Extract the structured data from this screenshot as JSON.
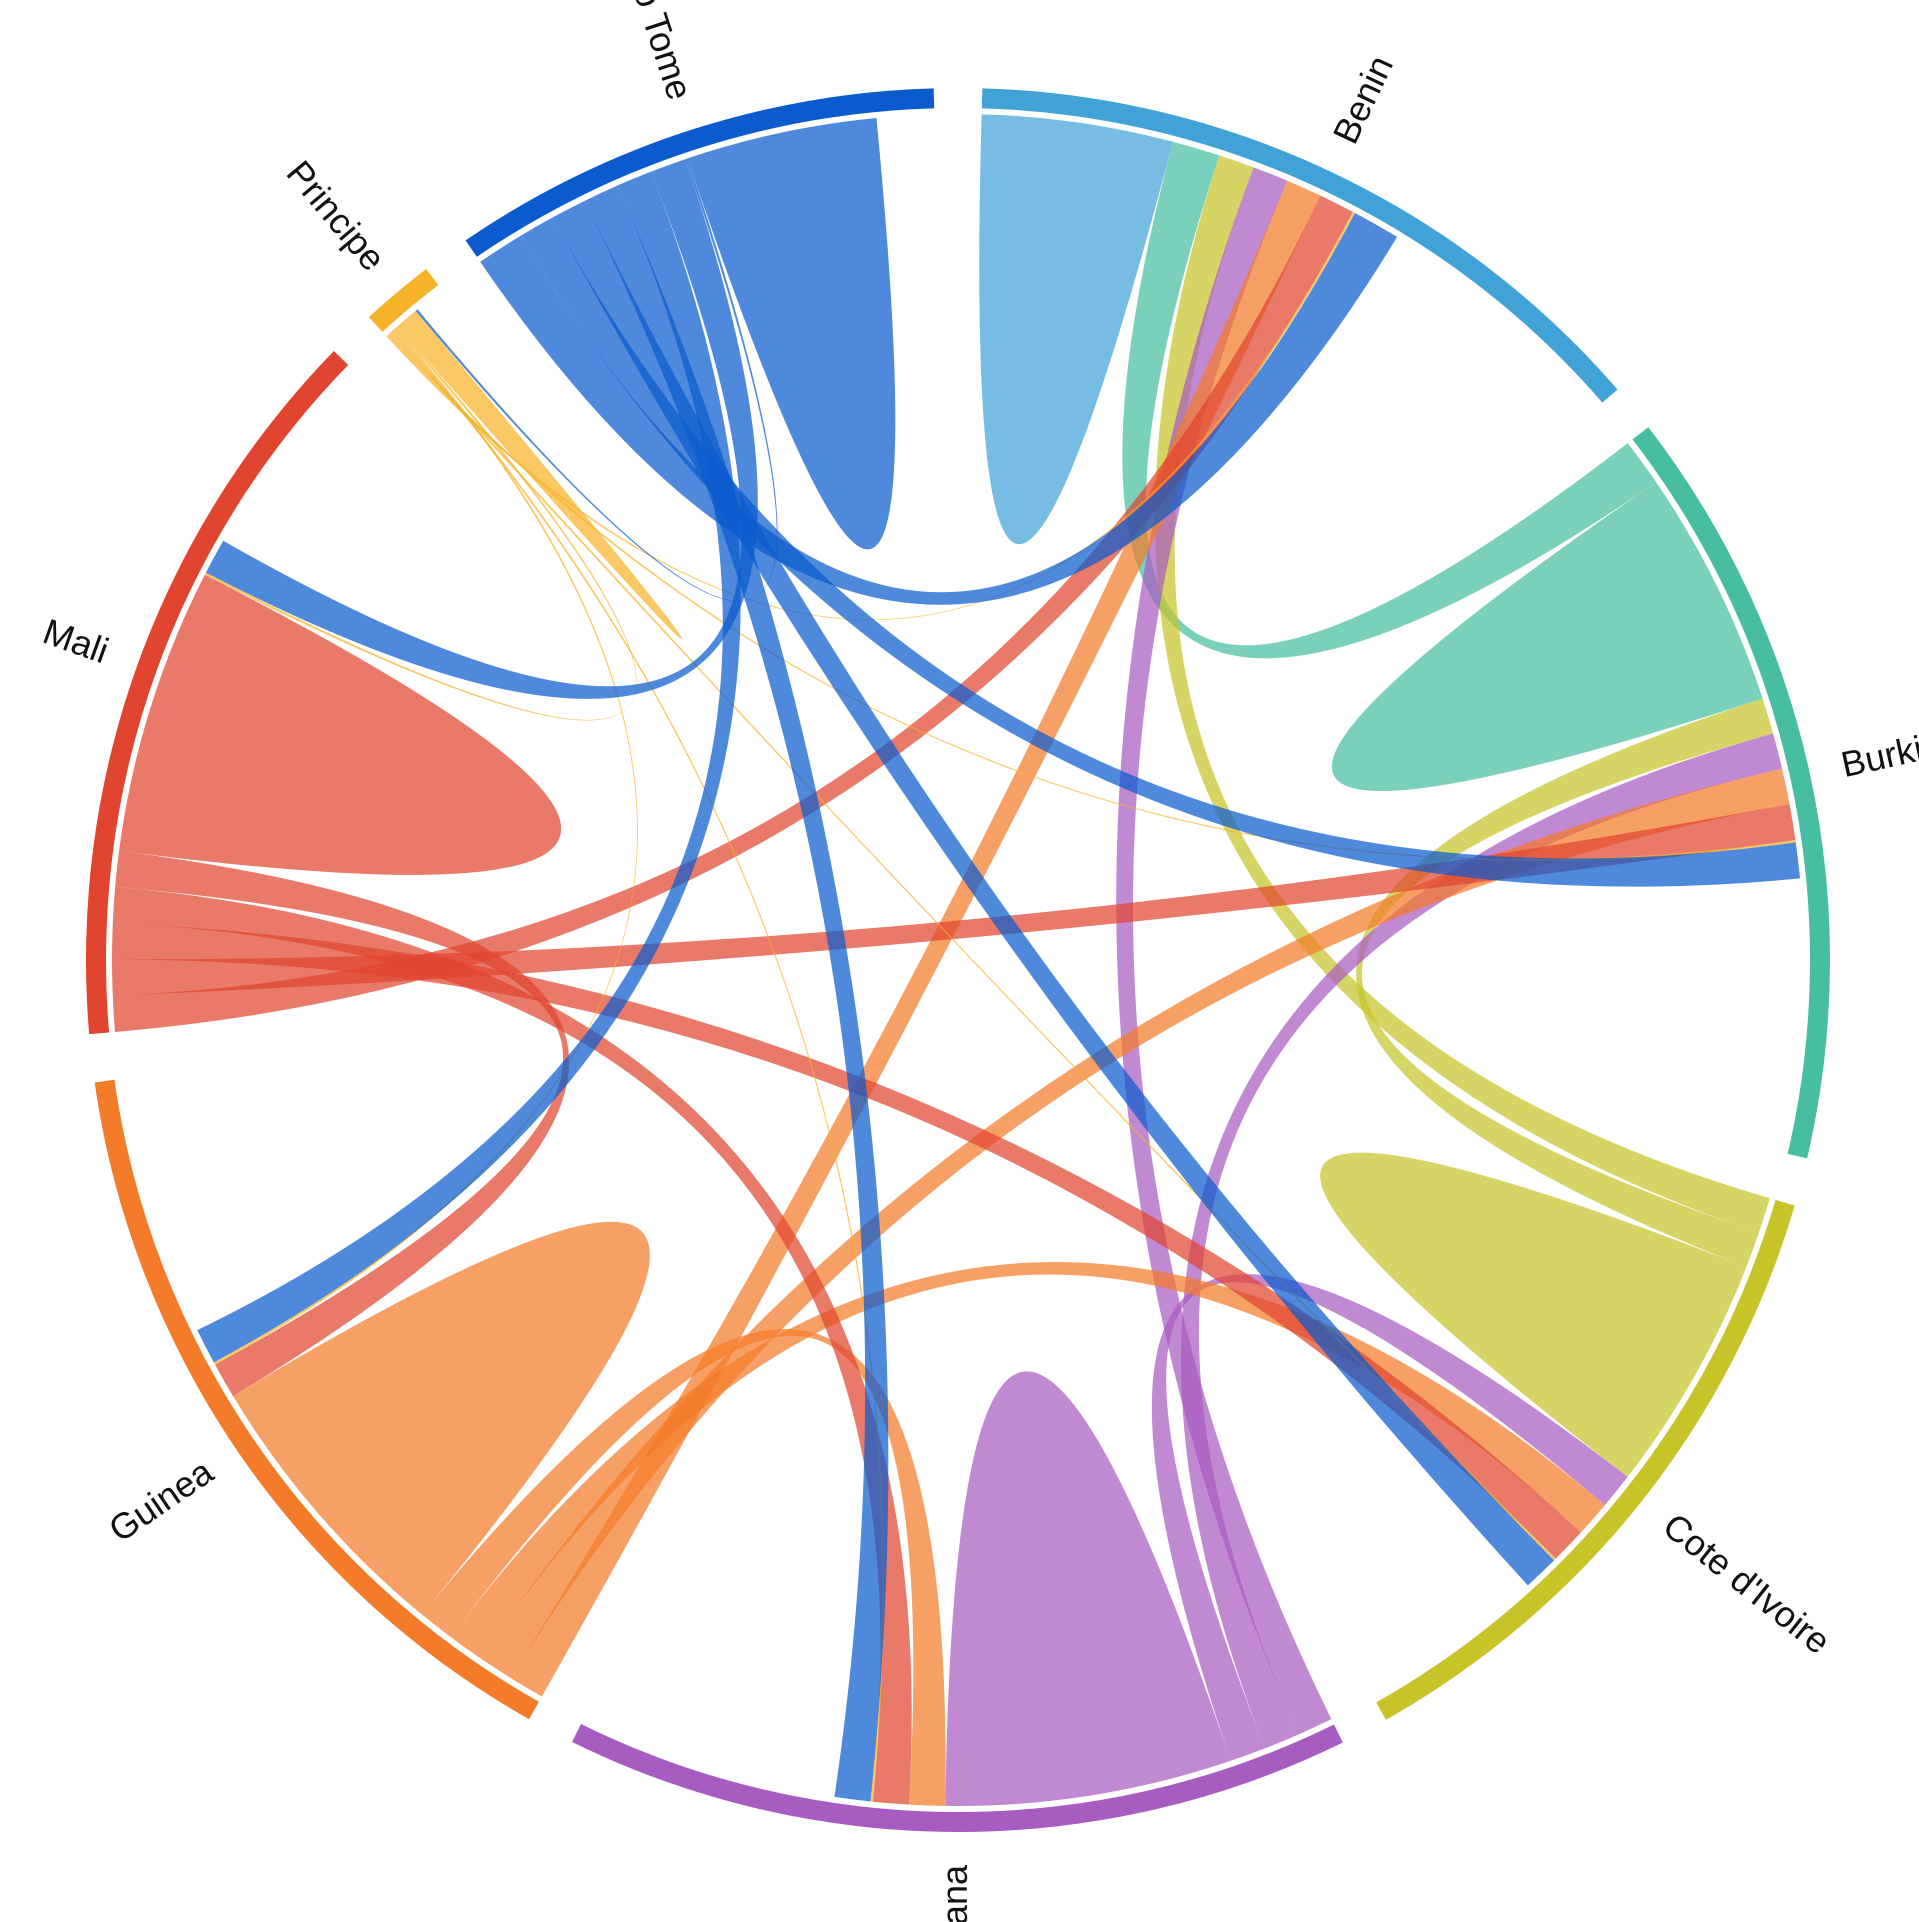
{
  "chart_data": {
    "type": "chord",
    "title": "",
    "groups": [
      {
        "name": "Benin",
        "color": "#41a2d8"
      },
      {
        "name": "Burkina Faso",
        "color": "#47bea1"
      },
      {
        "name": "Cote  d'Ivoire",
        "color": "#c6c428"
      },
      {
        "name": "Ghana",
        "color": "#a75cc1"
      },
      {
        "name": "Guinea",
        "color": "#f47b2a"
      },
      {
        "name": "Mali",
        "color": "#e1452f"
      },
      {
        "name": "Principe",
        "color": "#f6b32a"
      },
      {
        "name": "Sao  Tome",
        "color": "#0b5bcf"
      }
    ],
    "group_totals": [
      29,
      31,
      27,
      32,
      32,
      30,
      3,
      20
    ],
    "flows": [
      {
        "source": "Benin",
        "target": "Benin",
        "value": 4
      },
      {
        "source": "Benin",
        "target": "Burkina Faso",
        "value": 2
      },
      {
        "source": "Benin",
        "target": "Cote  d'Ivoire",
        "value": 1.5
      },
      {
        "source": "Benin",
        "target": "Ghana",
        "value": 1.5
      },
      {
        "source": "Benin",
        "target": "Guinea",
        "value": 1.5
      },
      {
        "source": "Benin",
        "target": "Mali",
        "value": 1.5
      },
      {
        "source": "Benin",
        "target": "Principe",
        "value": 0.1
      },
      {
        "source": "Benin",
        "target": "Sao  Tome",
        "value": 2
      },
      {
        "source": "Burkina Faso",
        "target": "Burkina Faso",
        "value": 5
      },
      {
        "source": "Burkina Faso",
        "target": "Cote  d'Ivoire",
        "value": 1.5
      },
      {
        "source": "Burkina Faso",
        "target": "Ghana",
        "value": 1.5
      },
      {
        "source": "Burkina Faso",
        "target": "Guinea",
        "value": 1.5
      },
      {
        "source": "Burkina Faso",
        "target": "Mali",
        "value": 1.5
      },
      {
        "source": "Burkina Faso",
        "target": "Principe",
        "value": 0.1
      },
      {
        "source": "Burkina Faso",
        "target": "Sao  Tome",
        "value": 1.5
      },
      {
        "source": "Cote  d'Ivoire",
        "target": "Cote  d'Ivoire",
        "value": 5
      },
      {
        "source": "Cote  d'Ivoire",
        "target": "Ghana",
        "value": 1.5
      },
      {
        "source": "Cote  d'Ivoire",
        "target": "Guinea",
        "value": 1.5
      },
      {
        "source": "Cote  d'Ivoire",
        "target": "Mali",
        "value": 1.5
      },
      {
        "source": "Cote  d'Ivoire",
        "target": "Principe",
        "value": 0.1
      },
      {
        "source": "Cote  d'Ivoire",
        "target": "Sao  Tome",
        "value": 1.5
      },
      {
        "source": "Ghana",
        "target": "Ghana",
        "value": 6
      },
      {
        "source": "Ghana",
        "target": "Guinea",
        "value": 1.5
      },
      {
        "source": "Ghana",
        "target": "Mali",
        "value": 1.5
      },
      {
        "source": "Ghana",
        "target": "Principe",
        "value": 0.1
      },
      {
        "source": "Ghana",
        "target": "Sao  Tome",
        "value": 1.5
      },
      {
        "source": "Guinea",
        "target": "Guinea",
        "value": 6
      },
      {
        "source": "Guinea",
        "target": "Mali",
        "value": 1.5
      },
      {
        "source": "Guinea",
        "target": "Principe",
        "value": 0.1
      },
      {
        "source": "Guinea",
        "target": "Sao  Tome",
        "value": 1.5
      },
      {
        "source": "Mali",
        "target": "Mali",
        "value": 6
      },
      {
        "source": "Mali",
        "target": "Principe",
        "value": 0.1
      },
      {
        "source": "Mali",
        "target": "Sao  Tome",
        "value": 1.5
      },
      {
        "source": "Principe",
        "target": "Principe",
        "value": 0.5
      },
      {
        "source": "Principe",
        "target": "Sao  Tome",
        "value": 0.1
      },
      {
        "source": "Sao  Tome",
        "target": "Sao  Tome",
        "value": 4
      }
    ]
  }
}
